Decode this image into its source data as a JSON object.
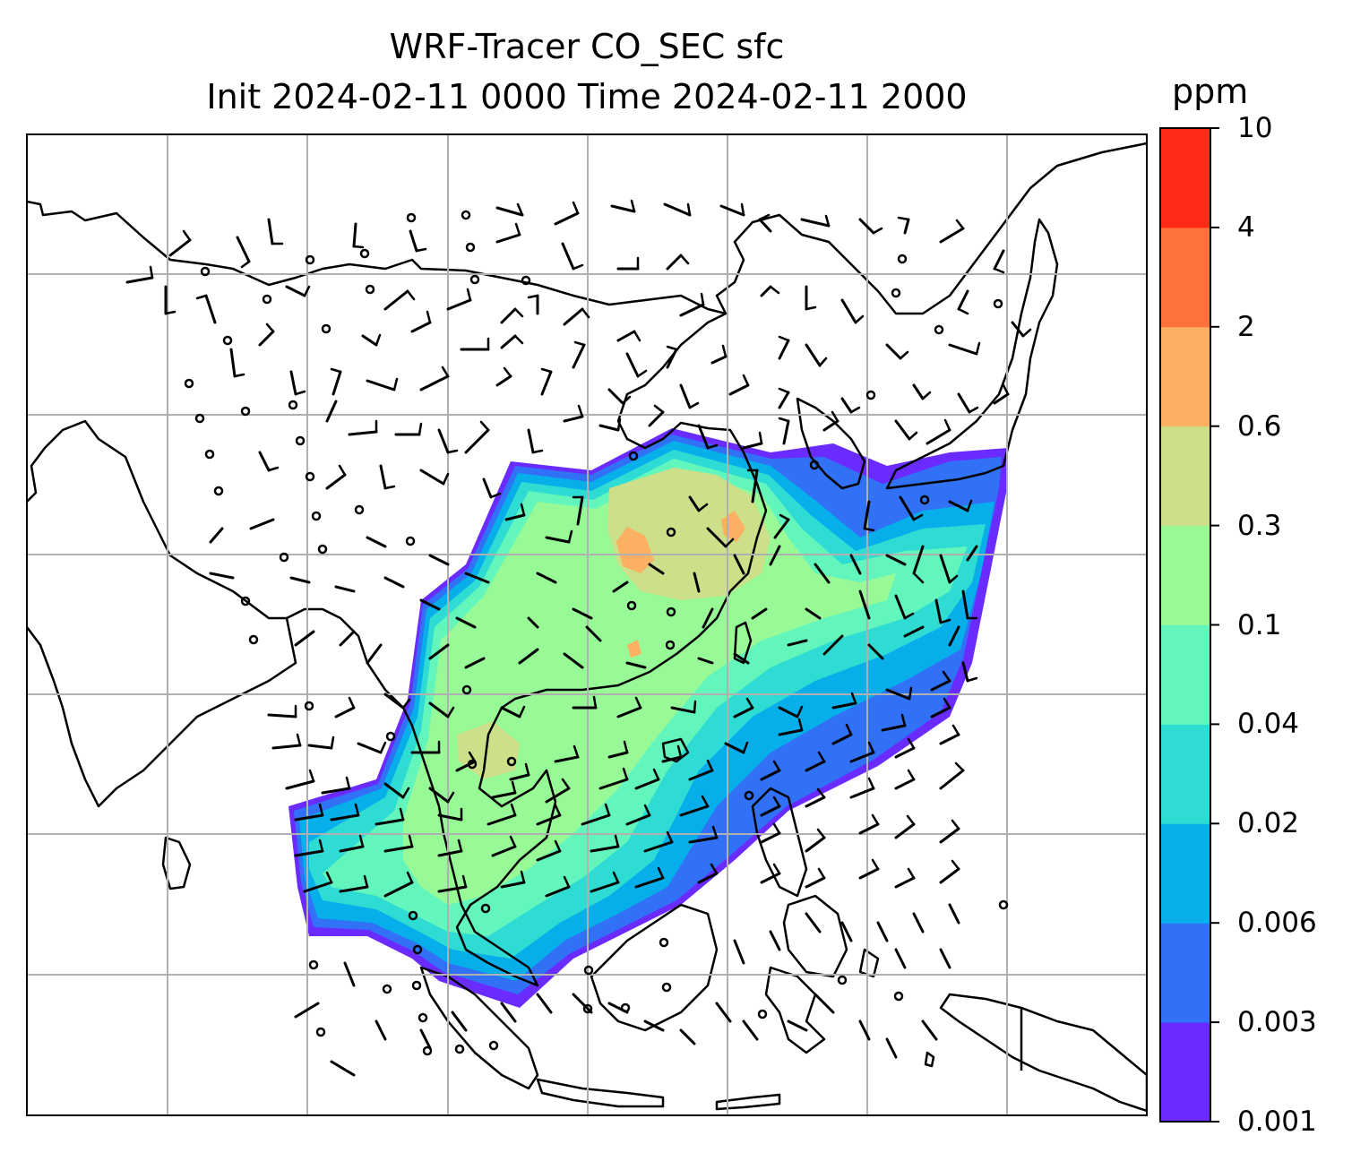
{
  "title": {
    "line1": "WRF-Tracer CO_SEC sfc",
    "line2": "Init 2024-02-11 0000 Time 2024-02-11 2000"
  },
  "colorbar": {
    "unit": "ppm",
    "levels": [
      "0.001",
      "0.003",
      "0.006",
      "0.02",
      "0.04",
      "0.1",
      "0.3",
      "0.6",
      "2",
      "4",
      "10"
    ],
    "colors": [
      "#6a2bff",
      "#3171f5",
      "#06aeea",
      "#2edcd4",
      "#63f6bc",
      "#98fa97",
      "#cddf89",
      "#fbb062",
      "#ff713c",
      "#ff2a17"
    ]
  },
  "map": {
    "gridlines": "on",
    "coastlines": "on",
    "overlay": "wind barbs"
  }
}
